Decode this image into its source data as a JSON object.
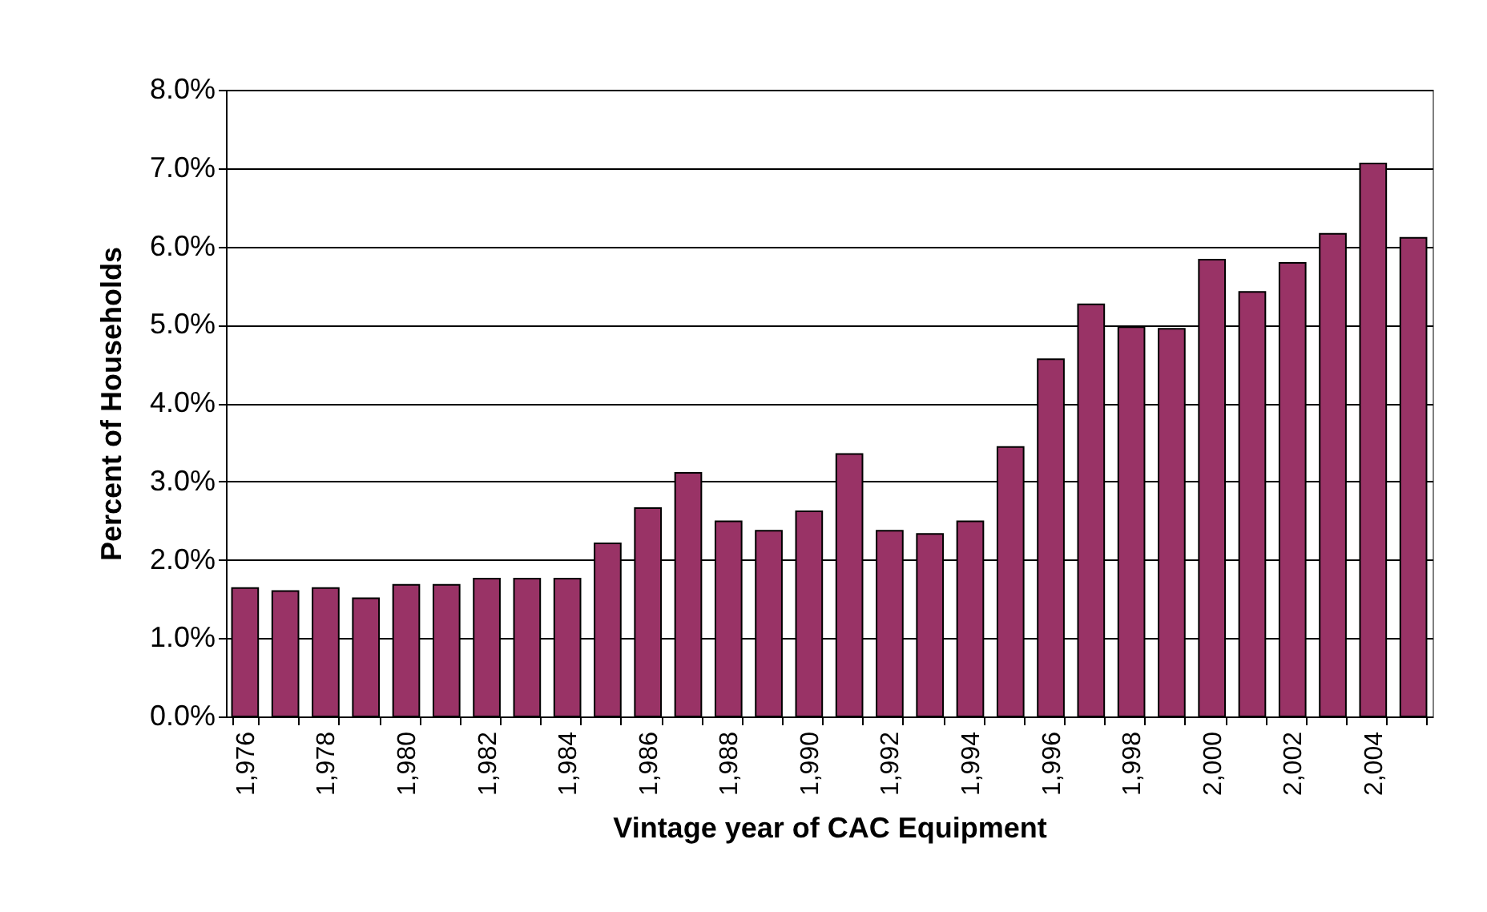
{
  "chart_data": {
    "type": "bar",
    "xlabel": "Vintage year of CAC Equipment",
    "ylabel": "Percent of Households",
    "categories": [
      "1,976",
      null,
      "1,978",
      null,
      "1,980",
      null,
      "1,982",
      null,
      "1,984",
      null,
      "1,986",
      null,
      "1,988",
      null,
      "1,990",
      null,
      "1,992",
      null,
      "1,994",
      null,
      "1,996",
      null,
      "1,998",
      null,
      "2,000",
      null,
      "2,002",
      null,
      "2,004",
      null
    ],
    "values": [
      1.64,
      1.6,
      1.64,
      1.51,
      1.68,
      1.68,
      1.76,
      1.76,
      1.76,
      2.21,
      2.66,
      3.11,
      2.49,
      2.37,
      2.62,
      3.35,
      2.37,
      2.33,
      2.49,
      3.44,
      4.56,
      5.26,
      4.97,
      4.95,
      5.83,
      5.42,
      5.79,
      6.16,
      7.06,
      6.11
    ],
    "color": "#993366",
    "ylim": [
      0,
      8
    ],
    "yticks": [
      {
        "value": 0,
        "label": "0.0%"
      },
      {
        "value": 1,
        "label": "1.0%"
      },
      {
        "value": 2,
        "label": "2.0%"
      },
      {
        "value": 3,
        "label": "3.0%"
      },
      {
        "value": 4,
        "label": "4.0%"
      },
      {
        "value": 5,
        "label": "5.0%"
      },
      {
        "value": 6,
        "label": "6.0%"
      },
      {
        "value": 7,
        "label": "7.0%"
      },
      {
        "value": 8,
        "label": "8.0%"
      }
    ],
    "grid": "y"
  }
}
